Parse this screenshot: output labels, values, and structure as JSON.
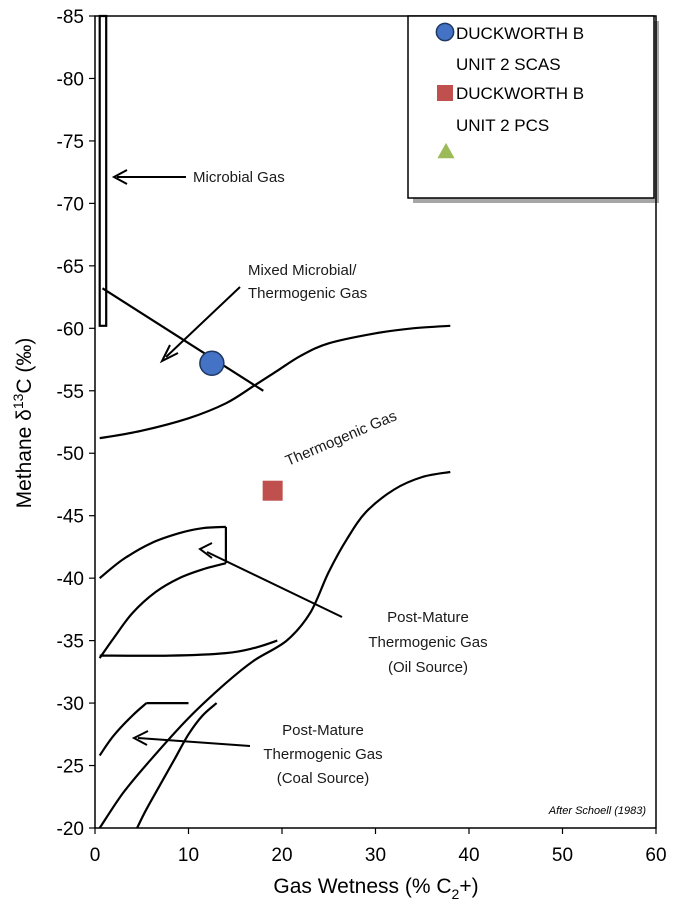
{
  "chart_data": {
    "type": "scatter",
    "xlabel": "Gas Wetness (% C2+)",
    "xlabel_main": "Gas Wetness (% C",
    "xlabel_sub": "2",
    "xlabel_end": "+)",
    "ylabel_main": "Methane  δ",
    "ylabel_sup": "13",
    "ylabel_end": "C (‰)",
    "xlim": [
      0,
      60
    ],
    "ylim": [
      -85,
      -20
    ],
    "x_reversed": false,
    "y_reversed": true,
    "grid": false,
    "legend_position": "top-right",
    "xticks": [
      "0",
      "10",
      "20",
      "30",
      "40",
      "50",
      "60"
    ],
    "yticks": [
      "-85",
      "-80",
      "-75",
      "-70",
      "-65",
      "-60",
      "-55",
      "-50",
      "-45",
      "-40",
      "-35",
      "-30",
      "-25",
      "-20"
    ],
    "series": [
      {
        "name": "DUCKWORTH B UNIT 2 SCAS",
        "legend_line1": "DUCKWORTH B",
        "legend_line2": "UNIT 2 SCAS",
        "marker": "circle",
        "color": "#4472C4",
        "points": [
          {
            "x": 12.5,
            "y": -57.2
          }
        ]
      },
      {
        "name": "DUCKWORTH B UNIT 2 PCS",
        "legend_line1": "DUCKWORTH B",
        "legend_line2": "UNIT 2 PCS",
        "marker": "square",
        "color": "#C0504D",
        "points": [
          {
            "x": 19,
            "y": -47
          }
        ]
      },
      {
        "name": "",
        "marker": "triangle",
        "color": "#9BBB59",
        "points": []
      }
    ],
    "region_labels": {
      "microbial": "Microbial Gas",
      "mixed_1": "Mixed Microbial/",
      "mixed_2": "Thermogenic Gas",
      "thermogenic": "Thermogenic Gas",
      "post_oil_1": "Post-Mature",
      "post_oil_2": "Thermogenic Gas",
      "post_oil_3": "(Oil Source)",
      "post_coal_1": "Post-Mature",
      "post_coal_2": "Thermogenic Gas",
      "post_coal_3": "(Coal Source)"
    },
    "credit": "After Schoell (1983)",
    "boundaries": {
      "microbial_box": [
        [
          0.5,
          -85
        ],
        [
          1.2,
          -85
        ],
        [
          1.2,
          -60.2
        ],
        [
          0.5,
          -60.2
        ]
      ],
      "mixed_line": [
        [
          0.8,
          -63.2
        ],
        [
          18,
          -55
        ]
      ],
      "thermo_upper": [
        [
          0.5,
          -51.2
        ],
        [
          5,
          -51.8
        ],
        [
          10,
          -52.8
        ],
        [
          14,
          -54
        ],
        [
          17,
          -55.4
        ],
        [
          19.5,
          -56.6
        ],
        [
          22,
          -57.8
        ],
        [
          25,
          -58.8
        ],
        [
          30,
          -59.6
        ],
        [
          34,
          -60
        ],
        [
          38,
          -60.2
        ]
      ],
      "oil_outer": [
        [
          0.5,
          -40
        ],
        [
          3,
          -41.5
        ],
        [
          6,
          -42.8
        ],
        [
          9,
          -43.6
        ],
        [
          11.5,
          -44
        ],
        [
          14,
          -44.1
        ]
      ],
      "oil_right_edge": [
        [
          14,
          -44.1
        ],
        [
          14,
          -41.2
        ]
      ],
      "oil_inner": [
        [
          0.5,
          -33.6
        ],
        [
          2,
          -35.2
        ],
        [
          4,
          -37.2
        ],
        [
          6.5,
          -38.9
        ],
        [
          9,
          -40
        ],
        [
          11.5,
          -40.7
        ],
        [
          14,
          -41.2
        ]
      ],
      "oil_bottom": [
        [
          0.5,
          -33.8
        ],
        [
          8,
          -33.8
        ],
        [
          14,
          -34
        ],
        [
          17,
          -34.4
        ],
        [
          19.5,
          -35
        ]
      ],
      "thermo_lower": [
        [
          0.5,
          -20
        ],
        [
          3,
          -22.8
        ],
        [
          6,
          -25.5
        ],
        [
          10,
          -28.8
        ],
        [
          14,
          -31.6
        ],
        [
          17,
          -33.4
        ],
        [
          20.5,
          -35
        ],
        [
          23,
          -37.2
        ],
        [
          25,
          -40.5
        ],
        [
          27,
          -43.2
        ],
        [
          29,
          -45.3
        ],
        [
          32,
          -47.1
        ],
        [
          35,
          -48.1
        ],
        [
          38,
          -48.5
        ]
      ],
      "coal_left": [
        [
          0.5,
          -25.8
        ],
        [
          2,
          -27.4
        ],
        [
          4,
          -29
        ],
        [
          5.5,
          -30
        ]
      ],
      "coal_top": [
        [
          5.5,
          -30
        ],
        [
          10,
          -30
        ]
      ],
      "coal_inner": [
        [
          4.5,
          -20
        ],
        [
          5.5,
          -21.5
        ],
        [
          7,
          -23.5
        ],
        [
          8.5,
          -25.5
        ],
        [
          10,
          -27.5
        ],
        [
          11.5,
          -29
        ],
        [
          13,
          -30
        ]
      ]
    }
  }
}
